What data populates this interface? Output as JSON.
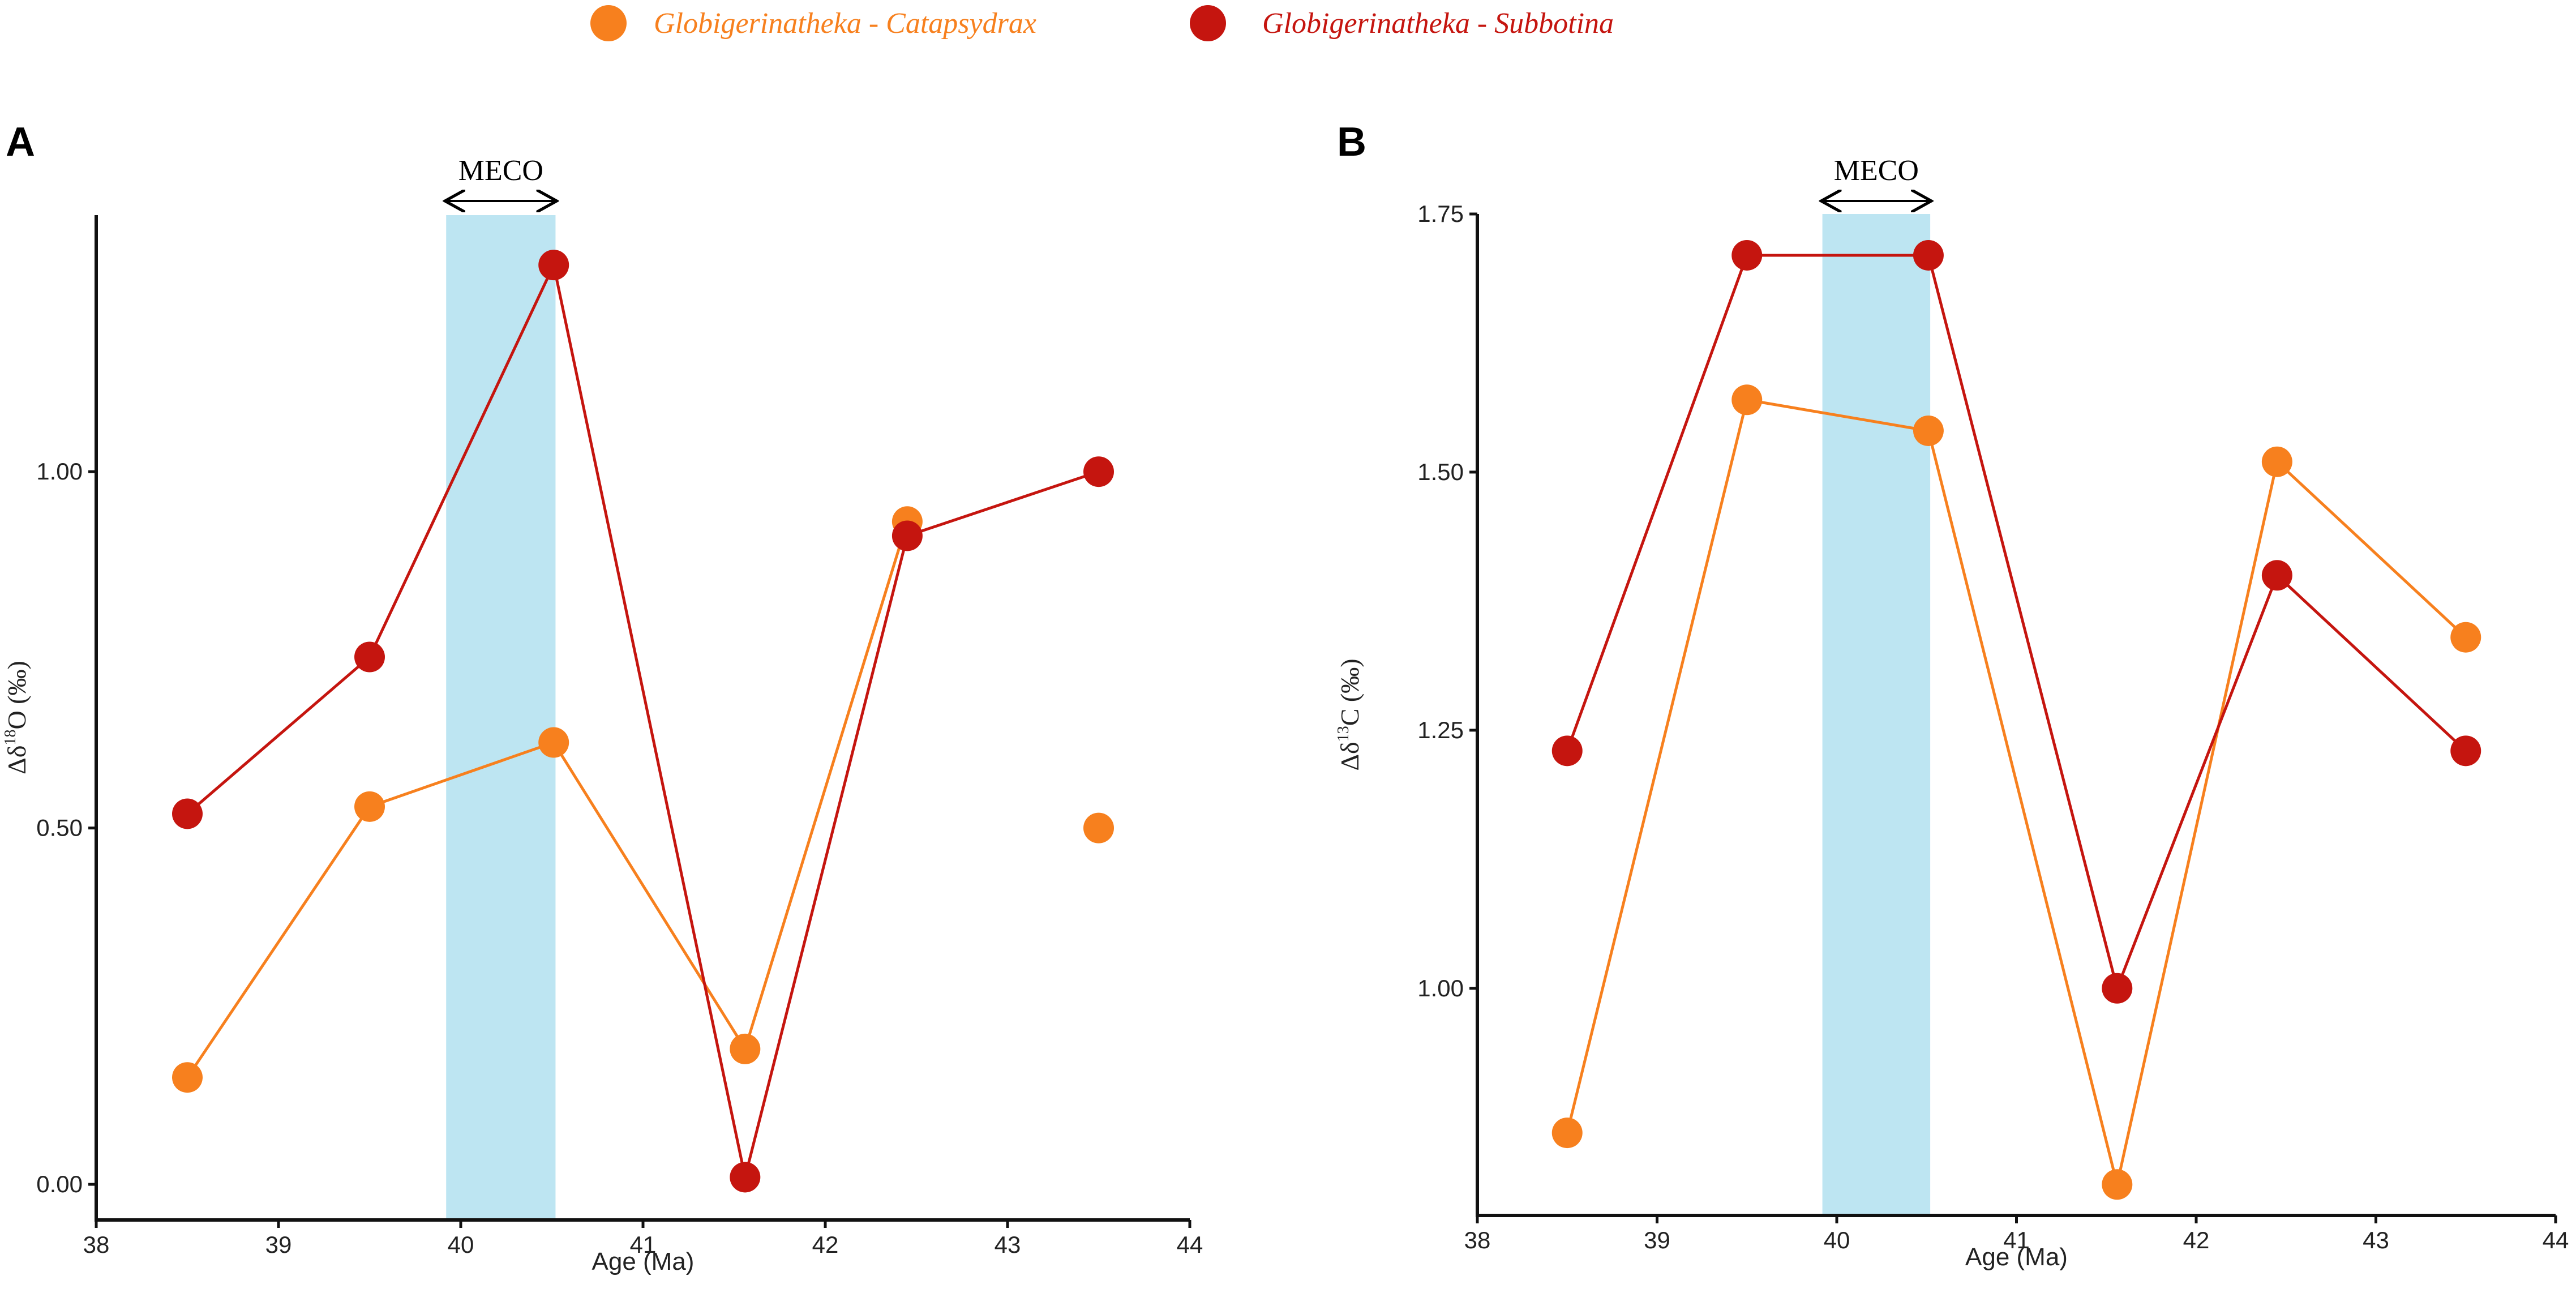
{
  "legend": {
    "items": [
      {
        "label": "Globigerinatheka - Catapsydrax",
        "color": "#F7801E"
      },
      {
        "label": "Globigerinatheka - Subbotina",
        "color": "#C5150F"
      }
    ]
  },
  "chart_data": [
    {
      "type": "line",
      "panel": "A",
      "xlabel": "Age (Ma)",
      "ylabel_main": "Δδ",
      "ylabel_sup": "18",
      "ylabel_rest": "O (‰)",
      "xlim": [
        38,
        44
      ],
      "ylim": [
        -0.05,
        1.36
      ],
      "xticks": [
        "38",
        "39",
        "40",
        "41",
        "42",
        "43",
        "44"
      ],
      "yticks": [
        {
          "value": 0.0,
          "label": "0.00"
        },
        {
          "value": 0.5,
          "label": "0.50"
        },
        {
          "value": 1.0,
          "label": "1.00"
        }
      ],
      "highlight": {
        "label": "MECO",
        "x_start": 39.92,
        "x_end": 40.52,
        "color": "#BDE5F2"
      },
      "series": [
        {
          "name": "Globigerinatheka - Catapsydrax",
          "color": "#F7801E",
          "x": [
            38.5,
            39.5,
            40.51,
            41.56,
            42.45,
            43.5
          ],
          "y": [
            0.15,
            0.53,
            0.62,
            0.19,
            0.93,
            0.5
          ],
          "connected_points": 5
        },
        {
          "name": "Globigerinatheka - Subbotina",
          "color": "#C5150F",
          "x": [
            38.5,
            39.5,
            40.51,
            41.56,
            42.45,
            43.5
          ],
          "y": [
            0.52,
            0.74,
            1.29,
            0.01,
            0.91,
            1.0
          ],
          "connected_points": 6
        }
      ]
    },
    {
      "type": "line",
      "panel": "B",
      "xlabel": "Age (Ma)",
      "ylabel_main": "Δδ",
      "ylabel_sup": "13",
      "ylabel_rest": "C (‰)",
      "xlim": [
        38,
        44
      ],
      "ylim": [
        0.78,
        1.75
      ],
      "xticks": [
        "38",
        "39",
        "40",
        "41",
        "42",
        "43",
        "44"
      ],
      "yticks": [
        {
          "value": 1.0,
          "label": "1.00"
        },
        {
          "value": 1.25,
          "label": "1.25"
        },
        {
          "value": 1.5,
          "label": "1.50"
        },
        {
          "value": 1.75,
          "label": "1.75"
        }
      ],
      "highlight": {
        "label": "MECO",
        "x_start": 39.92,
        "x_end": 40.52,
        "color": "#BDE5F2"
      },
      "series": [
        {
          "name": "Globigerinatheka - Catapsydrax",
          "color": "#F7801E",
          "x": [
            38.5,
            39.5,
            40.51,
            41.56,
            42.45,
            43.5
          ],
          "y": [
            0.86,
            1.57,
            1.54,
            0.81,
            1.51,
            1.34
          ],
          "connected_points": 6
        },
        {
          "name": "Globigerinatheka - Subbotina",
          "color": "#C5150F",
          "x": [
            38.5,
            39.5,
            40.51,
            41.56,
            42.45,
            43.5
          ],
          "y": [
            1.23,
            1.71,
            1.71,
            1.0,
            1.4,
            1.23
          ],
          "connected_points": 6
        }
      ]
    }
  ]
}
